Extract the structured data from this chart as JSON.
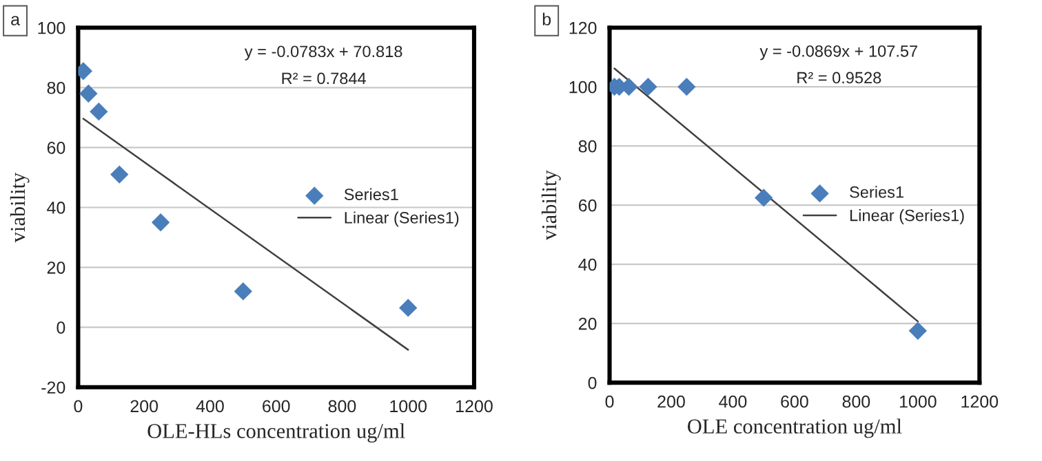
{
  "chart_data": [
    {
      "type": "scatter",
      "xlabel": "OLE-HLs concentration ug/ml",
      "ylabel": "viability",
      "annotations": [
        "a",
        "y = -0.0783x + 70.818",
        "R² = 0.7844"
      ],
      "xlim": [
        0,
        1200
      ],
      "xticks": [
        0,
        200,
        400,
        600,
        800,
        1000,
        1200
      ],
      "ylim": [
        -20,
        100
      ],
      "yticks": [
        -20,
        0,
        20,
        40,
        60,
        80,
        100
      ],
      "grid": "y",
      "legend": "right",
      "series": [
        {
          "name": "Series1",
          "type": "scatter",
          "marker": "diamond",
          "color": "#4a7ebb",
          "x": [
            15.6,
            31.25,
            62.5,
            125,
            250,
            500,
            1000
          ],
          "values": [
            85.5,
            78,
            72,
            51,
            35,
            12,
            6.5
          ]
        },
        {
          "name": "Linear (Series1)",
          "type": "line",
          "marker": "none",
          "line_style": "solid",
          "color": "#404040",
          "x": [
            15.6,
            1000
          ],
          "values": [
            69.6,
            -7.5
          ]
        }
      ]
    },
    {
      "type": "scatter",
      "xlabel": "OLE concentration ug/ml",
      "ylabel": "viability",
      "annotations": [
        "b",
        "y = -0.0869x + 107.57",
        "R² = 0.9528"
      ],
      "xlim": [
        0,
        1200
      ],
      "xticks": [
        0,
        200,
        400,
        600,
        800,
        1000,
        1200
      ],
      "ylim": [
        0,
        120
      ],
      "yticks": [
        0,
        20,
        40,
        60,
        80,
        100,
        120
      ],
      "grid": "y",
      "legend": "right",
      "series": [
        {
          "name": "Series1",
          "type": "scatter",
          "marker": "diamond",
          "color": "#4a7ebb",
          "x": [
            15.6,
            31.25,
            62.5,
            125,
            250,
            500,
            1000
          ],
          "values": [
            100,
            100,
            100,
            100,
            100,
            62.5,
            17.5
          ]
        },
        {
          "name": "Linear (Series1)",
          "type": "line",
          "marker": "none",
          "line_style": "solid",
          "color": "#404040",
          "x": [
            15.6,
            1000
          ],
          "values": [
            106.2,
            20.7
          ]
        }
      ]
    }
  ]
}
